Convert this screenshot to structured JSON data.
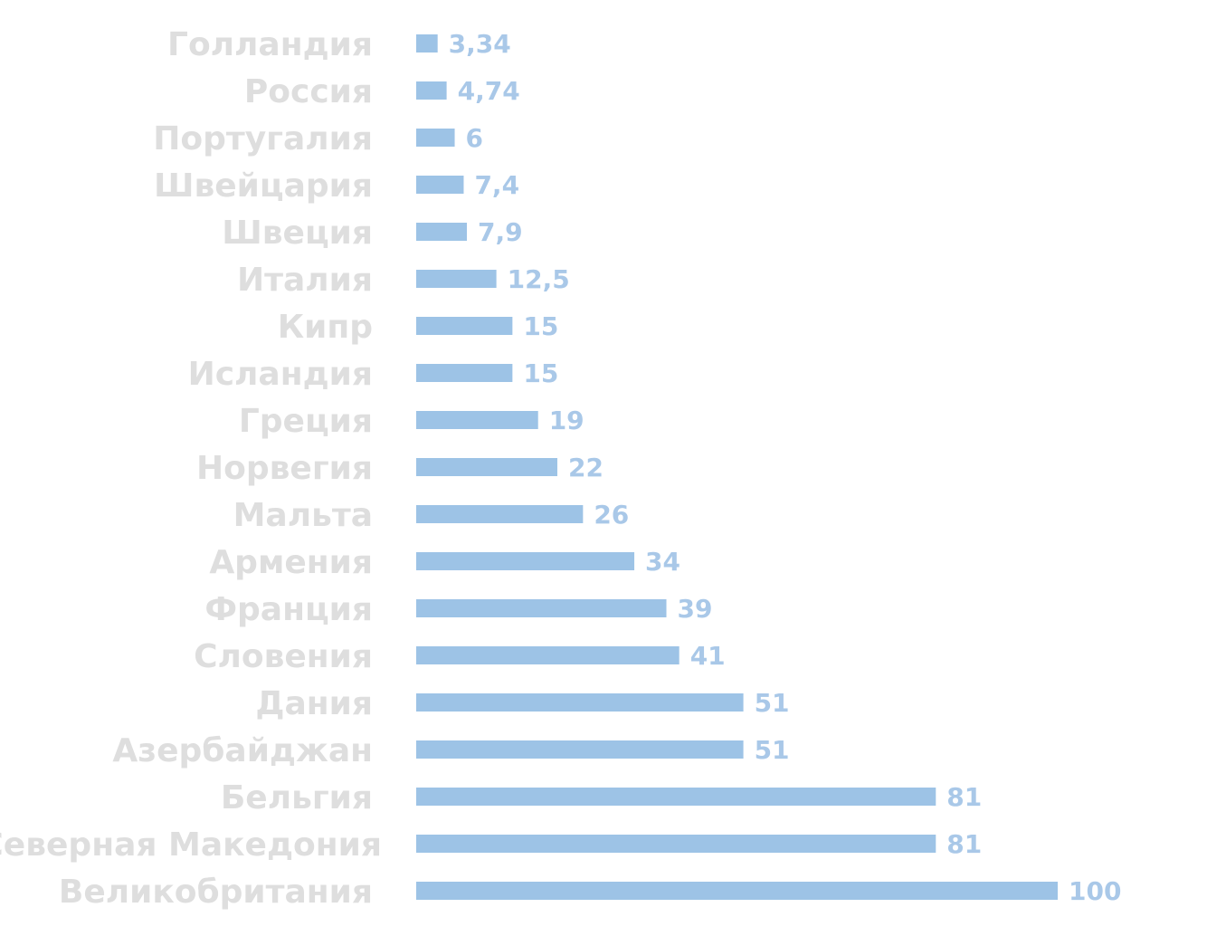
{
  "chart_data": {
    "type": "bar",
    "orientation": "horizontal",
    "categories": [
      "Голландия",
      "Россия",
      "Португалия",
      "Швейцария",
      "Швеция",
      "Италия",
      "Кипр",
      "Исландия",
      "Греция",
      "Норвегия",
      "Мальта",
      "Армения",
      "Франция",
      "Словения",
      "Дания",
      "Азербайджан",
      "Бельгия",
      "Северная Македония",
      "Великобритания"
    ],
    "values": [
      3.34,
      4.74,
      6,
      7.4,
      7.9,
      12.5,
      15,
      15,
      19,
      22,
      26,
      34,
      39,
      41,
      51,
      51,
      81,
      81,
      100
    ],
    "value_labels": [
      "3,34",
      "4,74",
      "6",
      "7,4",
      "7,9",
      "12,5",
      "15",
      "15",
      "19",
      "22",
      "26",
      "34",
      "39",
      "41",
      "51",
      "51",
      "81",
      "81",
      "100"
    ],
    "xlim": [
      0,
      100
    ],
    "grid": false,
    "legend": "none",
    "colors": {
      "bar": "#9dc3e6",
      "value_label": "#a9c8e8",
      "category_label": "#dedede"
    }
  }
}
